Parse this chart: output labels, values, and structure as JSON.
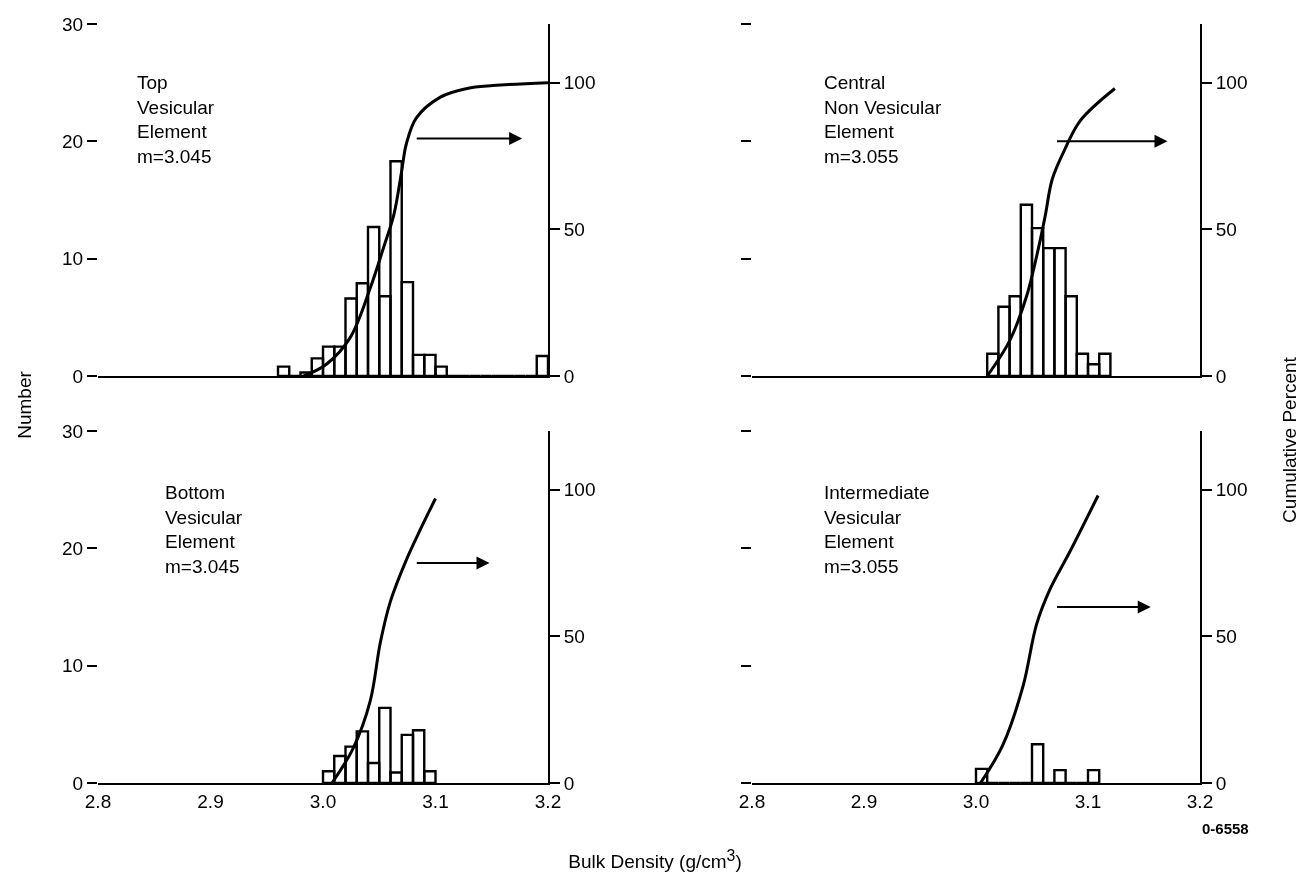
{
  "chart_data": [
    {
      "type": "histogram",
      "ylabel": "Number",
      "annotations": [
        "Top\nVesicular\nElement\nm=3.045"
      ],
      "xlim": [
        2.8,
        3.2
      ],
      "ylim": [
        0,
        30
      ],
      "yticks": [
        0,
        10,
        20,
        30
      ],
      "y2lim": [
        0,
        120
      ],
      "y2ticks": [
        0,
        50,
        100
      ],
      "tick_labels": "y",
      "series": [
        {
          "type": "histogram",
          "color": "#000000",
          "bins": [
            2.96,
            2.97,
            2.98,
            2.99,
            3.0,
            3.01,
            3.02,
            3.03,
            3.04,
            3.05,
            3.06,
            3.07,
            3.08,
            3.09,
            3.1,
            3.11,
            3.12,
            3.13,
            3.14,
            3.15,
            3.16,
            3.17,
            3.18,
            3.19,
            3.2
          ],
          "values": [
            0.8,
            0,
            0.3,
            1.5,
            2.5,
            2.5,
            6.6,
            7.9,
            12.7,
            6.8,
            18.3,
            8.0,
            1.8,
            1.8,
            0.8,
            0,
            0,
            0,
            0,
            0,
            0,
            0,
            0,
            1.7
          ]
        },
        {
          "type": "line",
          "axis": "y2",
          "color": "#000000",
          "x": [
            2.983,
            3.003,
            3.024,
            3.042,
            3.054,
            3.063,
            3.07,
            3.074,
            3.083,
            3.104,
            3.128,
            3.151,
            3.2
          ],
          "values": [
            0,
            4,
            13,
            30,
            44,
            55,
            70,
            79,
            88,
            95,
            98,
            99,
            100
          ]
        }
      ]
    },
    {
      "type": "histogram",
      "y2label": "Cumulative Percent",
      "annotations": [
        "Central\nNon Vesicular\nElement\nm=3.055"
      ],
      "xlim": [
        2.8,
        3.2
      ],
      "ylim": [
        0,
        30
      ],
      "y2lim": [
        0,
        120
      ],
      "y2ticks": [
        0,
        50,
        100
      ],
      "tick_labels": "y2",
      "series": [
        {
          "type": "histogram",
          "color": "#000000",
          "bins": [
            3.01,
            3.02,
            3.03,
            3.04,
            3.05,
            3.06,
            3.07,
            3.08,
            3.09,
            3.1,
            3.11,
            3.12
          ],
          "values": [
            1.9,
            5.9,
            6.8,
            14.6,
            12.6,
            10.9,
            10.9,
            6.8,
            1.9,
            1.0,
            1.9
          ]
        },
        {
          "type": "line",
          "axis": "y2",
          "color": "#000000",
          "x": [
            3.01,
            3.03,
            3.045,
            3.056,
            3.062,
            3.068,
            3.079,
            3.093,
            3.124
          ],
          "values": [
            0,
            12,
            27,
            44,
            55,
            67,
            77,
            87,
            98
          ]
        }
      ]
    },
    {
      "type": "histogram",
      "xlabel": "Bulk Density (g/cm$^{3}$)",
      "annotations": [
        "Bottom\nVesicular\nElement\nm=3.045"
      ],
      "xlim": [
        2.8,
        3.2
      ],
      "xticks": [
        2.8,
        2.9,
        {
          "value": 3,
          "label": "3.0"
        },
        3.1,
        3.2
      ],
      "ylim": [
        0,
        30
      ],
      "yticks": [
        0,
        10,
        20,
        30
      ],
      "y2lim": [
        0,
        120
      ],
      "y2ticks": [
        0,
        50,
        100
      ],
      "series": [
        {
          "type": "histogram",
          "color": "#000000",
          "bins": [
            3.0,
            3.01,
            3.02,
            3.03,
            3.04,
            3.05,
            3.06,
            3.07,
            3.08,
            3.09,
            3.1
          ],
          "values": [
            1.0,
            2.3,
            3.1,
            4.4,
            1.7,
            6.4,
            0.9,
            4.1,
            4.5,
            1.0
          ]
        },
        {
          "type": "line",
          "axis": "y2",
          "color": "#000000",
          "x": [
            3.008,
            3.027,
            3.042,
            3.051,
            3.06,
            3.074,
            3.086,
            3.1
          ],
          "values": [
            0,
            12,
            28,
            48,
            62,
            76,
            86,
            97
          ]
        }
      ]
    },
    {
      "type": "histogram",
      "annotations": [
        "Intermediate\nVesicular\nElement\nm=3.055",
        "0-6558"
      ],
      "xlim": [
        2.8,
        3.2
      ],
      "xticks": [
        2.8,
        2.9,
        {
          "value": 3,
          "label": "3.0"
        },
        3.1,
        3.2
      ],
      "ylim": [
        0,
        30
      ],
      "y2lim": [
        0,
        120
      ],
      "y2ticks": [
        0,
        50,
        100
      ],
      "tick_labels": [
        "x",
        "y2"
      ],
      "series": [
        {
          "type": "histogram",
          "color": "#000000",
          "bins": [
            3.0,
            3.01,
            3.02,
            3.03,
            3.04,
            3.05,
            3.06,
            3.07,
            3.08,
            3.09,
            3.1,
            3.11
          ],
          "values": [
            1.2,
            0,
            0,
            0,
            0,
            3.3,
            0,
            1.1,
            0,
            0,
            1.1
          ]
        },
        {
          "type": "line",
          "axis": "y2",
          "color": "#000000",
          "x": [
            3.004,
            3.024,
            3.042,
            3.054,
            3.066,
            3.084,
            3.109
          ],
          "values": [
            0,
            13,
            33,
            54,
            66,
            79,
            98
          ]
        }
      ]
    }
  ]
}
